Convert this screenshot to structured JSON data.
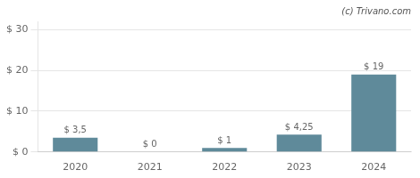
{
  "chart_data": {
    "type": "bar",
    "categories": [
      "2020",
      "2021",
      "2022",
      "2023",
      "2024"
    ],
    "values": [
      3.5,
      0,
      1,
      4.25,
      19
    ],
    "value_labels": [
      "$ 3,5",
      "$ 0",
      "$ 1",
      "$ 4,25",
      "$ 19"
    ],
    "color": "#5f8a9a",
    "ylim": [
      0,
      32
    ],
    "yticks": [
      {
        "value": 0,
        "label": "$ 0"
      },
      {
        "value": 10,
        "label": "$ 10"
      },
      {
        "value": 20,
        "label": "$ 20"
      },
      {
        "value": 30,
        "label": "$ 30"
      }
    ],
    "grid": true,
    "data_labels": true,
    "annotations": [
      "(c) Trivano.com"
    ]
  }
}
